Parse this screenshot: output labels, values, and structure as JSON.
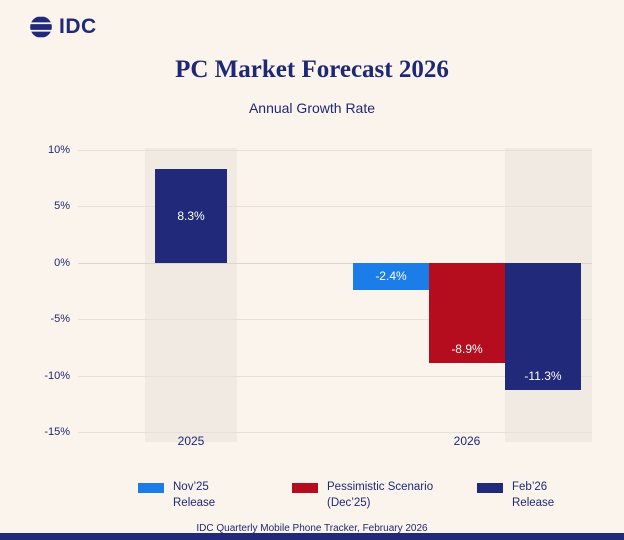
{
  "header": {
    "logo_text": "IDC",
    "title": "PC Market Forecast 2026",
    "subtitle": "Annual Growth Rate"
  },
  "colors": {
    "navy": "#212A7A",
    "blue": "#1D7DE8",
    "red": "#B50D1E",
    "background": "#FBF4EC",
    "band": "#F0EAE2",
    "grid": "#E7E0D6",
    "text": "#1F2875"
  },
  "chart_data": {
    "type": "bar",
    "title": "PC Market Forecast 2026",
    "subtitle": "Annual Growth Rate",
    "ylim": [
      -15,
      10
    ],
    "ytick_suffix": "%",
    "grid": true,
    "legend_position": "bottom",
    "yticks": [
      {
        "value": 10,
        "label": "10%"
      },
      {
        "value": 5,
        "label": "5%"
      },
      {
        "value": 0,
        "label": "0%"
      },
      {
        "value": -5,
        "label": "-5%"
      },
      {
        "value": -10,
        "label": "-10%"
      },
      {
        "value": -15,
        "label": "-15%"
      }
    ],
    "categories": [
      "2025",
      "2026"
    ],
    "bars": [
      {
        "category": "2025",
        "value": 8.3,
        "label": "8.3%",
        "color_key": "navy",
        "highlight_band": true
      },
      {
        "category": "2026",
        "value": -2.4,
        "label": "-2.4%",
        "color_key": "blue",
        "highlight_band": false
      },
      {
        "category": "2026",
        "value": -8.9,
        "label": "-8.9%",
        "color_key": "red",
        "highlight_band": false
      },
      {
        "category": "2026",
        "value": -11.3,
        "label": "-11.3%",
        "color_key": "navy",
        "highlight_band": true
      }
    ],
    "legend": [
      {
        "line1": "Nov’25",
        "line2": "Release",
        "color_key": "blue"
      },
      {
        "line1": "Pessimistic Scenario",
        "line2": "(Dec’25)",
        "color_key": "red"
      },
      {
        "line1": "Feb’26",
        "line2": "Release",
        "color_key": "navy"
      }
    ]
  },
  "footer": {
    "source": "IDC Quarterly Mobile Phone Tracker, February 2026"
  }
}
